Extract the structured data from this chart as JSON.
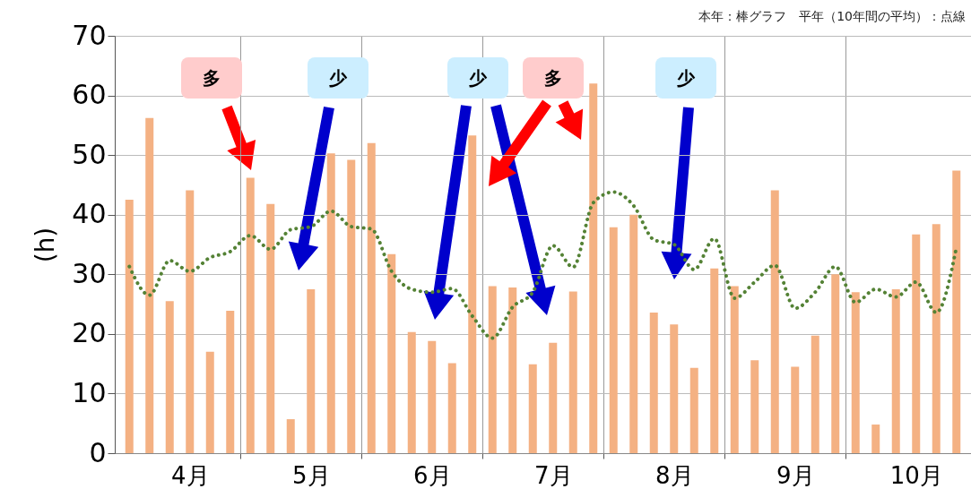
{
  "chart_data": {
    "type": "bar",
    "ylabel": "(h)",
    "categories": [
      null,
      null,
      null,
      "4月",
      null,
      null,
      null,
      null,
      null,
      "5月",
      null,
      null,
      null,
      null,
      null,
      "6月",
      null,
      null,
      null,
      null,
      null,
      "7月",
      null,
      null,
      null,
      null,
      null,
      "8月",
      null,
      null,
      null,
      null,
      null,
      "9月",
      null,
      null,
      null,
      null,
      null,
      "10月",
      null,
      null
    ],
    "ylim": [
      0,
      70
    ],
    "yticks": [
      0,
      10,
      20,
      30,
      40,
      50,
      60,
      70
    ],
    "grid": true,
    "series": [
      {
        "color": "#f4b183",
        "values": [
          42.5,
          56.2,
          25.5,
          44.1,
          17.0,
          23.9,
          46.2,
          41.8,
          5.7,
          27.5,
          50.3,
          49.2,
          52.0,
          33.4,
          20.3,
          18.8,
          15.1,
          53.3,
          28.0,
          27.8,
          14.9,
          18.5,
          27.1,
          62.0,
          37.9,
          40.0,
          23.6,
          21.6,
          14.3,
          31.0,
          28.0,
          15.6,
          44.1,
          14.5,
          19.7,
          30.0,
          27.0,
          4.8,
          27.5,
          36.7,
          38.4,
          47.4
        ]
      },
      {
        "type": "line",
        "color": "#548235",
        "line_style": "dotted",
        "marker": "none",
        "values": [
          31.3,
          26.5,
          32.3,
          30.5,
          32.8,
          33.8,
          36.5,
          34.2,
          37.5,
          38.0,
          40.6,
          38.0,
          37.6,
          30.5,
          27.5,
          27.0,
          27.6,
          23.0,
          19.3,
          24.5,
          27.0,
          34.8,
          31.2,
          42.0,
          43.8,
          41.5,
          35.8,
          35.0,
          30.8,
          36.0,
          26.0,
          28.7,
          31.5,
          24.3,
          27.0,
          31.3,
          25.3,
          27.5,
          26.2,
          28.7,
          23.6,
          34.5
        ]
      }
    ],
    "annotations": [
      "本年：棒グラフ　平年（10年間の平均）：点線",
      "多",
      "少",
      "少",
      "多",
      "少"
    ]
  }
}
